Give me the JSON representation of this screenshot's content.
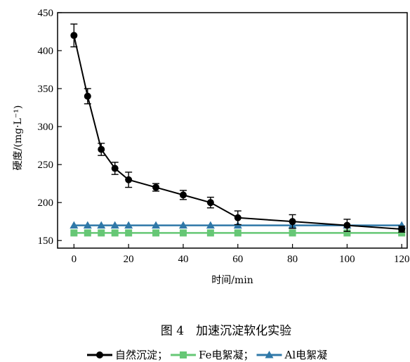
{
  "chart_data": {
    "type": "line",
    "xlabel": "时间/min",
    "ylabel": "硬度/(mg·L⁻¹)",
    "xlim": [
      -6,
      122
    ],
    "ylim": [
      140,
      450
    ],
    "xticks": [
      0,
      20,
      40,
      60,
      80,
      100,
      120
    ],
    "yticks": [
      150,
      200,
      250,
      300,
      350,
      400,
      450
    ],
    "grid": false,
    "legend_position": "bottom",
    "series": [
      {
        "name": "自然沉淀",
        "color": "#000000",
        "marker": "circle",
        "x": [
          0,
          5,
          10,
          15,
          20,
          30,
          40,
          50,
          60,
          80,
          100,
          120
        ],
        "y": [
          420,
          340,
          270,
          245,
          230,
          220,
          210,
          200,
          180,
          175,
          170,
          165
        ],
        "error": [
          15,
          10,
          8,
          8,
          10,
          5,
          6,
          7,
          9,
          9,
          8,
          4
        ]
      },
      {
        "name": "Fe电絮凝",
        "color": "#66c775",
        "marker": "square",
        "x": [
          0,
          5,
          10,
          15,
          20,
          30,
          40,
          50,
          60,
          80,
          100,
          120
        ],
        "y": [
          160,
          160,
          160,
          160,
          160,
          160,
          160,
          160,
          160,
          160,
          160,
          160
        ]
      },
      {
        "name": "Al电絮凝",
        "color": "#2f78a8",
        "marker": "triangle",
        "x": [
          0,
          5,
          10,
          15,
          20,
          30,
          40,
          50,
          60,
          80,
          100,
          120
        ],
        "y": [
          170,
          170,
          170,
          170,
          170,
          170,
          170,
          170,
          170,
          170,
          170,
          170
        ]
      }
    ]
  },
  "caption": "图 4　加速沉淀软化实验",
  "legend_separator": "；"
}
